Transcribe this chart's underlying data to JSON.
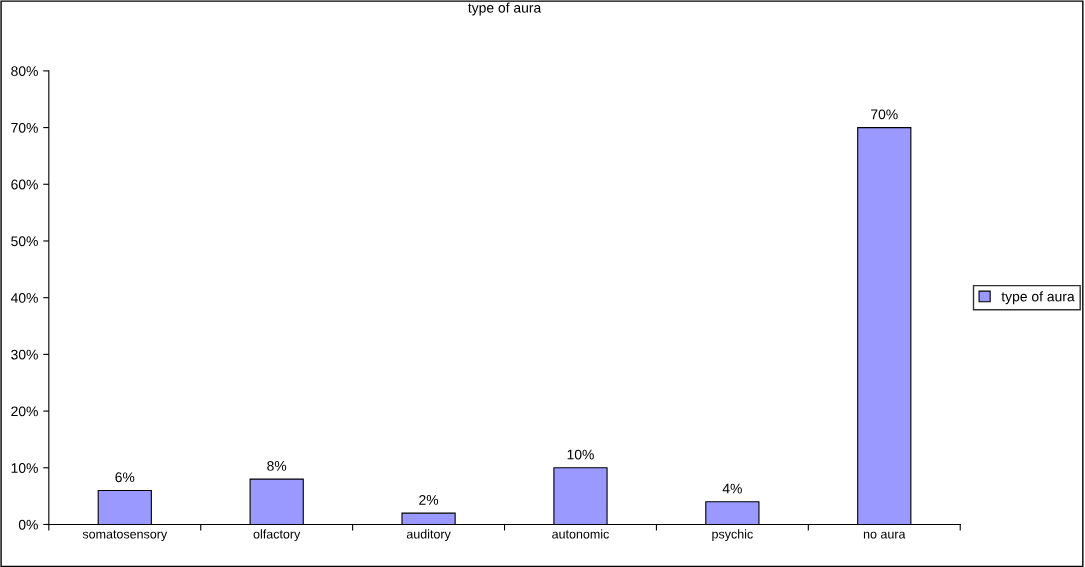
{
  "chart_data": {
    "type": "bar",
    "title": "type of aura",
    "categories": [
      "somatosensory",
      "olfactory",
      "auditory",
      "autonomic",
      "psychic",
      "no aura"
    ],
    "series": [
      {
        "name": "type of aura",
        "color": "#9999ff",
        "values": [
          6,
          8,
          2,
          10,
          4,
          70
        ],
        "value_labels": [
          "6%",
          "8%",
          "2%",
          "10%",
          "4%",
          "70%"
        ]
      }
    ],
    "ylim": [
      0,
      80
    ],
    "yticks": [
      {
        "value": 0,
        "label": "0%"
      },
      {
        "value": 10,
        "label": "10%"
      },
      {
        "value": 20,
        "label": "20%"
      },
      {
        "value": 30,
        "label": "30%"
      },
      {
        "value": 40,
        "label": "40%"
      },
      {
        "value": 50,
        "label": "50%"
      },
      {
        "value": 60,
        "label": "60%"
      },
      {
        "value": 70,
        "label": "70%"
      },
      {
        "value": 80,
        "label": "80%"
      }
    ],
    "grid": false,
    "legend": "right"
  }
}
